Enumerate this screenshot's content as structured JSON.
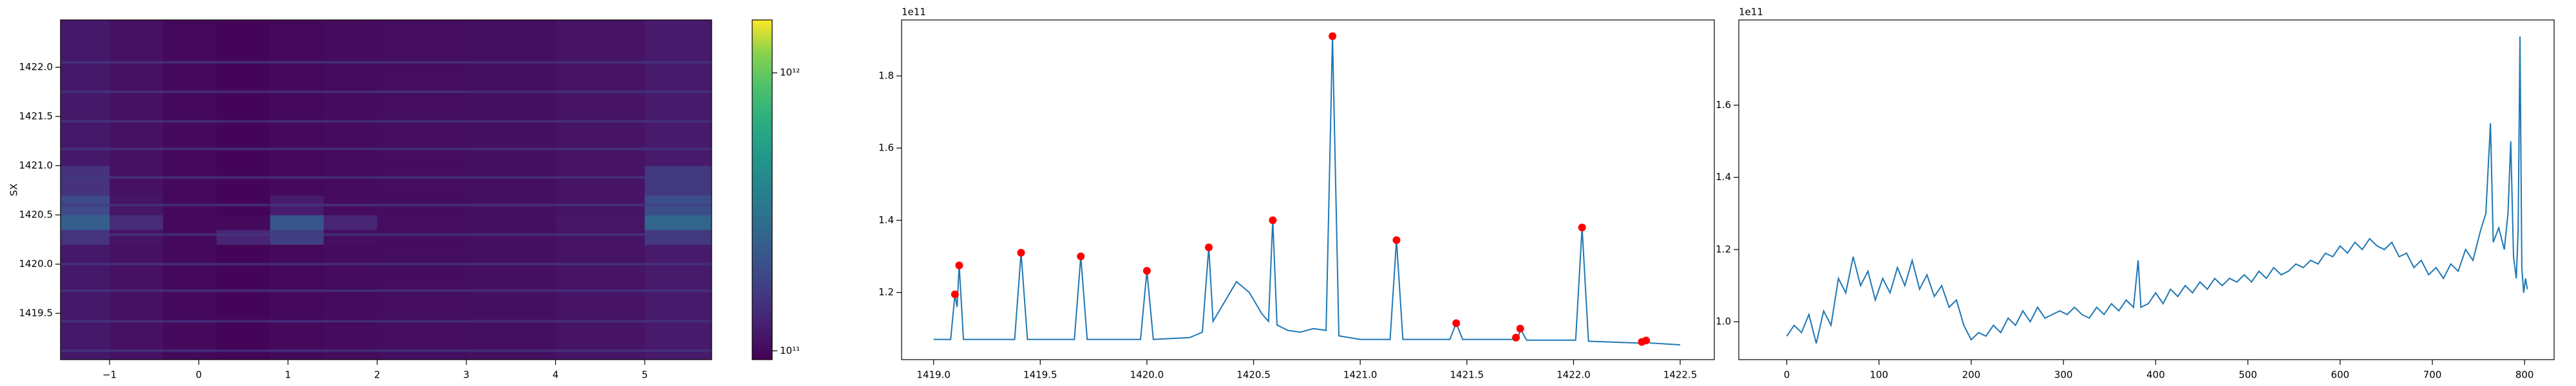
{
  "chart_data": [
    {
      "type": "heatmap",
      "ylabel": "SX",
      "cmap": "viridis",
      "xlim": [
        -1.55,
        5.75
      ],
      "ylim": [
        1419.03,
        1422.48
      ],
      "xticks": [
        {
          "value": -1,
          "label": "−1"
        },
        0,
        1,
        2,
        3,
        4,
        5
      ],
      "yticks": [
        1419.5,
        {
          "value": 1420,
          "label": "1420.0"
        },
        1420.5,
        {
          "value": 1421,
          "label": "1421.0"
        },
        1421.5,
        {
          "value": 1422,
          "label": "1422.0"
        }
      ],
      "x_edges": [
        -1.55,
        -1.0,
        -0.4,
        0.2,
        0.8,
        1.4,
        2.0,
        3.0,
        4.0,
        5.0,
        5.75
      ],
      "y_edges": [
        1419.03,
        1419.5,
        1419.9,
        1420.2,
        1420.35,
        1420.5,
        1420.7,
        1421.0,
        1421.5,
        1422.0,
        1422.48
      ],
      "z": [
        [
          115000000000.0,
          108000000000.0,
          100000000000.0,
          97000000000.0,
          100000000000.0,
          102000000000.0,
          104000000000.0,
          106000000000.0,
          110000000000.0,
          118000000000.0
        ],
        [
          115000000000.0,
          108000000000.0,
          100000000000.0,
          97000000000.0,
          100000000000.0,
          102000000000.0,
          104000000000.0,
          106000000000.0,
          110000000000.0,
          118000000000.0
        ],
        [
          115000000000.0,
          108000000000.0,
          100000000000.0,
          97000000000.0,
          100000000000.0,
          102000000000.0,
          104000000000.0,
          106000000000.0,
          110000000000.0,
          118000000000.0
        ],
        [
          150000000000.0,
          110000000000.0,
          100000000000.0,
          130000000000.0,
          170000000000.0,
          105000000000.0,
          104000000000.0,
          106000000000.0,
          110000000000.0,
          160000000000.0
        ],
        [
          240000000000.0,
          140000000000.0,
          100000000000.0,
          100000000000.0,
          220000000000.0,
          130000000000.0,
          104000000000.0,
          106000000000.0,
          112000000000.0,
          260000000000.0
        ],
        [
          190000000000.0,
          112000000000.0,
          100000000000.0,
          97000000000.0,
          120000000000.0,
          102000000000.0,
          104000000000.0,
          106000000000.0,
          110000000000.0,
          200000000000.0
        ],
        [
          150000000000.0,
          108000000000.0,
          100000000000.0,
          97000000000.0,
          100000000000.0,
          102000000000.0,
          104000000000.0,
          106000000000.0,
          110000000000.0,
          160000000000.0
        ],
        [
          115000000000.0,
          108000000000.0,
          100000000000.0,
          97000000000.0,
          100000000000.0,
          102000000000.0,
          104000000000.0,
          106000000000.0,
          110000000000.0,
          118000000000.0
        ],
        [
          115000000000.0,
          108000000000.0,
          100000000000.0,
          97000000000.0,
          100000000000.0,
          102000000000.0,
          104000000000.0,
          106000000000.0,
          110000000000.0,
          118000000000.0
        ],
        [
          115000000000.0,
          108000000000.0,
          100000000000.0,
          97000000000.0,
          100000000000.0,
          102000000000.0,
          104000000000.0,
          106000000000.0,
          110000000000.0,
          118000000000.0
        ]
      ],
      "hlines_y": [
        1419.12,
        1419.42,
        1419.73,
        1420.0,
        1420.3,
        1420.6,
        1420.88,
        1421.17,
        1421.45,
        1421.75,
        1422.05
      ],
      "hlines_values": [
        160000000000.0,
        160000000000.0,
        160000000000.0,
        160000000000.0,
        160000000000.0,
        160000000000.0,
        160000000000.0,
        160000000000.0,
        160000000000.0,
        160000000000.0,
        160000000000.0
      ],
      "colorbar": {
        "scale": "log",
        "lim": [
          93000000000.0,
          1550000000000.0
        ],
        "ticks": [
          {
            "value": 100000000000.0,
            "label": "10¹¹"
          },
          {
            "value": 1000000000000.0,
            "label": "10¹²"
          }
        ]
      }
    },
    {
      "type": "line",
      "offset_label": "1e11",
      "color": "#1f77b4",
      "xlim": [
        1418.85,
        1422.66
      ],
      "ylim": [
        101400000000.0,
        195500000000.0
      ],
      "xticks": [
        {
          "value": 1419,
          "label": "1419.0"
        },
        1419.5,
        {
          "value": 1420,
          "label": "1420.0"
        },
        1420.5,
        {
          "value": 1421,
          "label": "1421.0"
        },
        1421.5,
        {
          "value": 1422,
          "label": "1422.0"
        },
        1422.5
      ],
      "yticks": [
        {
          "value": 120000000000.0,
          "label": "1.2"
        },
        {
          "value": 140000000000.0,
          "label": "1.4"
        },
        {
          "value": 160000000000.0,
          "label": "1.6"
        },
        {
          "value": 180000000000.0,
          "label": "1.8"
        }
      ],
      "x": [
        1419.0,
        1419.08,
        1419.1,
        1419.11,
        1419.12,
        1419.14,
        1419.38,
        1419.41,
        1419.44,
        1419.66,
        1419.69,
        1419.72,
        1419.97,
        1420.0,
        1420.03,
        1420.2,
        1420.26,
        1420.29,
        1420.31,
        1420.36,
        1420.42,
        1420.48,
        1420.54,
        1420.57,
        1420.59,
        1420.61,
        1420.66,
        1420.72,
        1420.78,
        1420.84,
        1420.87,
        1420.9,
        1421.0,
        1421.14,
        1421.17,
        1421.2,
        1421.42,
        1421.45,
        1421.48,
        1421.71,
        1421.73,
        1421.74,
        1421.75,
        1421.78,
        1422.01,
        1422.04,
        1422.07,
        1422.3,
        1422.32,
        1422.34,
        1422.36,
        1422.5
      ],
      "values": [
        107000000000.0,
        107000000000.0,
        119500000000.0,
        116000000000.0,
        127500000000.0,
        107000000000.0,
        107000000000.0,
        131000000000.0,
        107000000000.0,
        107000000000.0,
        130000000000.0,
        107000000000.0,
        107000000000.0,
        126000000000.0,
        107000000000.0,
        107500000000.0,
        109000000000.0,
        132500000000.0,
        112000000000.0,
        117000000000.0,
        123000000000.0,
        120000000000.0,
        114000000000.0,
        112000000000.0,
        140000000000.0,
        111000000000.0,
        109500000000.0,
        109000000000.0,
        110000000000.0,
        109500000000.0,
        191000000000.0,
        108000000000.0,
        107000000000.0,
        107000000000.0,
        134500000000.0,
        107000000000.0,
        107000000000.0,
        111500000000.0,
        107000000000.0,
        107000000000.0,
        107500000000.0,
        107000000000.0,
        110000000000.0,
        106800000000.0,
        106800000000.0,
        138000000000.0,
        106500000000.0,
        106000000000.0,
        106300000000.0,
        106700000000.0,
        106000000000.0,
        105500000000.0
      ],
      "peaks": {
        "color": "#ff0000",
        "x": [
          1419.1,
          1419.12,
          1419.41,
          1419.69,
          1420.0,
          1420.29,
          1420.59,
          1420.87,
          1421.17,
          1421.45,
          1421.73,
          1421.75,
          1422.04,
          1422.32,
          1422.34
        ],
        "values": [
          119500000000.0,
          127500000000.0,
          131000000000.0,
          130000000000.0,
          126000000000.0,
          132500000000.0,
          140000000000.0,
          191000000000.0,
          134500000000.0,
          111500000000.0,
          107500000000.0,
          110000000000.0,
          138000000000.0,
          106300000000.0,
          106700000000.0
        ]
      }
    },
    {
      "type": "line",
      "offset_label": "1e11",
      "color": "#1f77b4",
      "xlim": [
        -52,
        832
      ],
      "ylim": [
        89500000000.0,
        183600000000.0
      ],
      "xticks": [
        0,
        100,
        200,
        300,
        400,
        500,
        600,
        700,
        800
      ],
      "yticks": [
        {
          "value": 100000000000.0,
          "label": "1.0"
        },
        {
          "value": 120000000000.0,
          "label": "1.2"
        },
        {
          "value": 140000000000.0,
          "label": "1.4"
        },
        {
          "value": 160000000000.0,
          "label": "1.6"
        }
      ],
      "x": [
        0,
        8,
        16,
        24,
        32,
        40,
        48,
        56,
        64,
        72,
        80,
        88,
        96,
        104,
        112,
        120,
        128,
        136,
        144,
        152,
        160,
        168,
        176,
        184,
        192,
        200,
        208,
        216,
        224,
        232,
        240,
        248,
        256,
        264,
        272,
        280,
        288,
        296,
        304,
        312,
        320,
        328,
        336,
        344,
        352,
        360,
        368,
        376,
        381,
        384,
        392,
        400,
        408,
        416,
        424,
        432,
        440,
        448,
        456,
        464,
        472,
        480,
        488,
        496,
        504,
        512,
        520,
        528,
        536,
        544,
        552,
        560,
        568,
        576,
        584,
        592,
        600,
        608,
        616,
        624,
        632,
        640,
        648,
        656,
        664,
        672,
        680,
        688,
        696,
        704,
        712,
        720,
        728,
        736,
        744,
        752,
        758,
        763,
        766,
        772,
        778,
        782,
        785,
        788,
        791,
        793,
        795,
        797,
        799,
        801,
        803
      ],
      "values": [
        96000000000.0,
        99000000000.0,
        97000000000.0,
        102000000000.0,
        94000000000.0,
        103000000000.0,
        99000000000.0,
        112000000000.0,
        108000000000.0,
        118000000000.0,
        110000000000.0,
        114000000000.0,
        106000000000.0,
        112000000000.0,
        108000000000.0,
        115000000000.0,
        110000000000.0,
        117000000000.0,
        109000000000.0,
        113000000000.0,
        107000000000.0,
        110000000000.0,
        104000000000.0,
        106000000000.0,
        99000000000.0,
        95000000000.0,
        97000000000.0,
        96000000000.0,
        99000000000.0,
        97000000000.0,
        101000000000.0,
        99000000000.0,
        103000000000.0,
        100000000000.0,
        104000000000.0,
        101000000000.0,
        102000000000.0,
        103000000000.0,
        102000000000.0,
        104000000000.0,
        102000000000.0,
        101000000000.0,
        104000000000.0,
        102000000000.0,
        105000000000.0,
        103000000000.0,
        106000000000.0,
        104000000000.0,
        117000000000.0,
        104000000000.0,
        105000000000.0,
        108000000000.0,
        105000000000.0,
        109000000000.0,
        107000000000.0,
        110000000000.0,
        108000000000.0,
        111000000000.0,
        109000000000.0,
        112000000000.0,
        110000000000.0,
        112000000000.0,
        111000000000.0,
        113000000000.0,
        111000000000.0,
        114000000000.0,
        112000000000.0,
        115000000000.0,
        113000000000.0,
        114000000000.0,
        116000000000.0,
        115000000000.0,
        117000000000.0,
        116000000000.0,
        119000000000.0,
        118000000000.0,
        121000000000.0,
        119000000000.0,
        122000000000.0,
        120000000000.0,
        123000000000.0,
        121000000000.0,
        120000000000.0,
        122000000000.0,
        118000000000.0,
        119000000000.0,
        115000000000.0,
        117000000000.0,
        113000000000.0,
        115000000000.0,
        112000000000.0,
        116000000000.0,
        114000000000.0,
        120000000000.0,
        117000000000.0,
        125000000000.0,
        130000000000.0,
        155000000000.0,
        122000000000.0,
        126000000000.0,
        120000000000.0,
        130000000000.0,
        150000000000.0,
        118000000000.0,
        112000000000.0,
        125000000000.0,
        179000000000.0,
        115000000000.0,
        108000000000.0,
        112000000000.0,
        109000000000.0
      ]
    }
  ]
}
